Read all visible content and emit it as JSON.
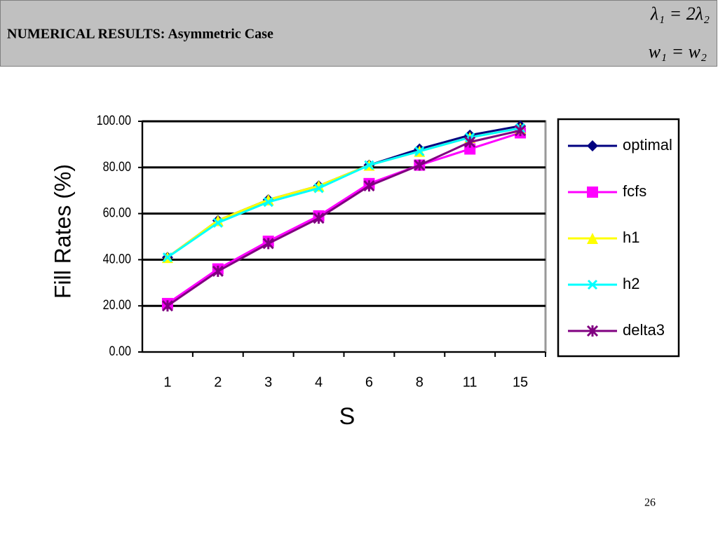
{
  "header": {
    "title": "NUMERICAL RESULTS: Asymmetric Case",
    "formula_1": "λ₁ = 2λ₂",
    "formula_2": "w₁ = w₂"
  },
  "page_number": "26",
  "chart_data": {
    "type": "line",
    "x_label": "S",
    "y_label": "Fill Rates (%)",
    "categories": [
      "1",
      "2",
      "3",
      "4",
      "6",
      "8",
      "11",
      "15"
    ],
    "ylim": [
      0,
      100
    ],
    "yticks": [
      {
        "value": 0,
        "label": "0.00"
      },
      {
        "value": 20,
        "label": "20.00"
      },
      {
        "value": 40,
        "label": "40.00"
      },
      {
        "value": 60,
        "label": "60.00"
      },
      {
        "value": 80,
        "label": "80.00"
      },
      {
        "value": 100,
        "label": "100.00"
      }
    ],
    "grid": true,
    "legend": "right",
    "series": [
      {
        "name": "optimal",
        "color": "#000080",
        "marker": "diamond",
        "values": [
          41,
          57,
          66,
          72,
          81,
          88,
          94,
          98
        ]
      },
      {
        "name": "fcfs",
        "color": "#ff00ff",
        "marker": "square",
        "values": [
          21,
          36,
          48,
          59,
          73,
          81,
          88,
          95
        ]
      },
      {
        "name": "h1",
        "color": "#ffff00",
        "marker": "triangle",
        "values": [
          41,
          57,
          66,
          72,
          81,
          87,
          93,
          97
        ]
      },
      {
        "name": "h2",
        "color": "#00ffff",
        "marker": "x",
        "values": [
          41,
          56,
          65,
          71,
          81,
          87,
          93,
          97
        ]
      },
      {
        "name": "delta3",
        "color": "#800080",
        "marker": "star",
        "values": [
          20,
          35,
          47,
          58,
          72,
          81,
          91,
          96
        ]
      }
    ]
  }
}
